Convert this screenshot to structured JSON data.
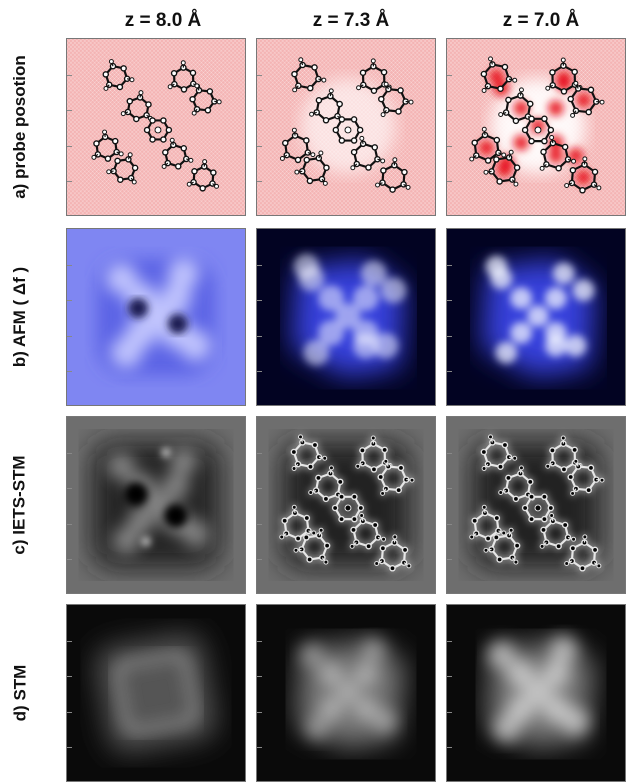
{
  "figure": {
    "columns": [
      {
        "label": "z = 8.0 Å"
      },
      {
        "label": "z = 7.3 Å"
      },
      {
        "label": "z = 7.0 Å"
      }
    ],
    "rows": [
      {
        "id": "probe",
        "label": "a) probe posotion",
        "kind": "probe"
      },
      {
        "id": "afm",
        "label": "b) AFM ( Δf )",
        "kind": "afm"
      },
      {
        "id": "iets",
        "label": "c) IETS-STM",
        "kind": "iets"
      },
      {
        "id": "stm",
        "label": "d) STM",
        "kind": "stm"
      }
    ],
    "colors": {
      "probe_background": "#f4b4b4",
      "probe_hotspot": "#e8101a",
      "afm_light": "#7f86f2",
      "afm_dark": "#020322",
      "afm_bright": "#f2f4ff",
      "iets_gray": "#6e6e6e",
      "stm_dark": "#0a0a0a",
      "stm_bright": "#e8e8e8"
    }
  }
}
